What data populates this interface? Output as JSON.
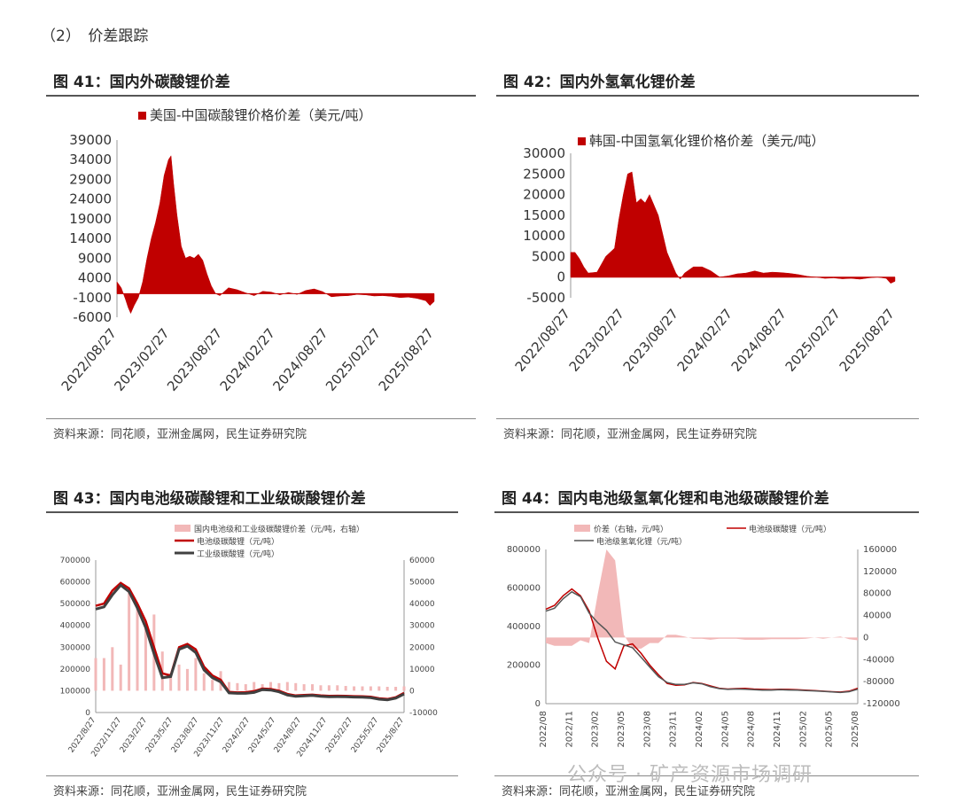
{
  "section": {
    "title": "（2）　价差跟踪"
  },
  "watermark": {
    "text": "公众号 · 矿产资源市场调研"
  },
  "colors": {
    "red": "#c00000",
    "pink": "#f2b8b8",
    "gray": "#404040",
    "darkgray": "#555555"
  },
  "chart_data": [
    {
      "id": "fig41",
      "type": "area",
      "title": "图 41：国内外碳酸锂价差",
      "legend": [
        "美国-中国碳酸锂价格价差（美元/吨）"
      ],
      "source": "资料来源：同花顺，亚洲金属网，民生证券研究院",
      "yticks": [
        "39000",
        "34000",
        "29000",
        "24000",
        "19000",
        "14000",
        "9000",
        "4000",
        "-1000",
        "-6000"
      ],
      "ylim": [
        -6000,
        39000
      ],
      "xticks": [
        "2022/08/27",
        "2023/02/27",
        "2023/08/27",
        "2024/02/27",
        "2024/08/27",
        "2025/02/27",
        "2025/08/27"
      ],
      "x": [
        0,
        0.5,
        1,
        1.3,
        1.6,
        2,
        2.5,
        3,
        3.5,
        4,
        4.5,
        5,
        5.5,
        6,
        6.3,
        6.6,
        7,
        7.5,
        8,
        8.5,
        9,
        9.5,
        10,
        10.5,
        11,
        11.5,
        12,
        13,
        14,
        15,
        16,
        17,
        18,
        19,
        20,
        21,
        22,
        23,
        24,
        25,
        26,
        27,
        28,
        29,
        30,
        31,
        32,
        33,
        34,
        35,
        36,
        36.5,
        37
      ],
      "values": [
        3000,
        1500,
        -1500,
        -3500,
        -5000,
        -3000,
        -1000,
        3000,
        9000,
        14000,
        18000,
        23000,
        30000,
        34000,
        35000,
        28000,
        20000,
        12000,
        9000,
        9500,
        9000,
        10000,
        8500,
        5000,
        2000,
        0,
        -500,
        1500,
        1000,
        200,
        -500,
        600,
        400,
        -300,
        300,
        -200,
        800,
        1200,
        500,
        -800,
        -600,
        -500,
        -200,
        -300,
        -600,
        -500,
        -700,
        -1000,
        -900,
        -1200,
        -1800,
        -3000,
        -2000
      ]
    },
    {
      "id": "fig42",
      "type": "area",
      "title": "图 42：国内外氢氧化锂价差",
      "legend": [
        "韩国-中国氢氧化锂价格价差（美元/吨）"
      ],
      "source": "资料来源：同花顺，亚洲金属网，民生证券研究院",
      "yticks": [
        "30000",
        "25000",
        "20000",
        "15000",
        "10000",
        "5000",
        "0",
        "-5000"
      ],
      "ylim": [
        -5000,
        30000
      ],
      "xticks": [
        "2022/08/27",
        "2023/02/27",
        "2023/08/27",
        "2024/02/27",
        "2024/08/27",
        "2025/02/27",
        "2025/08/27"
      ],
      "x": [
        0,
        0.5,
        1,
        1.5,
        2,
        3,
        4,
        5,
        5.5,
        6,
        6.5,
        7,
        7.5,
        8,
        8.5,
        9,
        10,
        11,
        12,
        12.5,
        13,
        14,
        15,
        16,
        17,
        18,
        19,
        20,
        21,
        22,
        23,
        24,
        25,
        26,
        27,
        28,
        29,
        30,
        31,
        32,
        33,
        34,
        35,
        36,
        36.5,
        37
      ],
      "values": [
        6000,
        6000,
        4500,
        2500,
        1000,
        1200,
        5000,
        7000,
        14000,
        20000,
        25000,
        25500,
        18000,
        19000,
        18000,
        20000,
        15000,
        6000,
        1000,
        -500,
        1000,
        2500,
        2500,
        1500,
        0,
        300,
        800,
        1000,
        1500,
        1000,
        1200,
        1100,
        900,
        600,
        200,
        0,
        -300,
        -200,
        -400,
        -300,
        -500,
        -200,
        0,
        -300,
        -1500,
        -1000
      ]
    },
    {
      "id": "fig43",
      "type": "line",
      "title": "图 43：国内电池级碳酸锂和工业级碳酸锂价差",
      "legend": [
        "国内电池级和工业级碳酸锂价差（元/吨，右轴）",
        "电池级碳酸锂（元/吨）",
        "工业级碳酸锂（元/吨）"
      ],
      "source": "资料来源：同花顺，亚洲金属网，民生证券研究院",
      "yticks_left": [
        "700000",
        "600000",
        "500000",
        "400000",
        "300000",
        "200000",
        "100000",
        "0"
      ],
      "yticks_right": [
        "60000",
        "50000",
        "40000",
        "30000",
        "20000",
        "10000",
        "0",
        "-10000"
      ],
      "ylim_left": [
        0,
        700000
      ],
      "ylim_right": [
        -10000,
        60000
      ],
      "xticks": [
        "2022/8/27",
        "2022/11/27",
        "2023/2/27",
        "2023/5/27",
        "2023/8/27",
        "2023/11/27",
        "2024/2/27",
        "2024/5/27",
        "2024/8/27",
        "2024/11/27",
        "2025/2/27",
        "2025/5/27",
        "2025/8/27"
      ],
      "x": [
        0,
        1,
        2,
        3,
        4,
        5,
        6,
        7,
        8,
        9,
        10,
        11,
        12,
        13,
        14,
        15,
        16,
        17,
        18,
        19,
        20,
        21,
        22,
        23,
        24,
        25,
        26,
        27,
        28,
        29,
        30,
        31,
        32,
        33,
        34,
        35,
        36,
        37
      ],
      "battery": [
        490000,
        500000,
        560000,
        595000,
        570000,
        500000,
        420000,
        300000,
        180000,
        170000,
        300000,
        315000,
        290000,
        210000,
        170000,
        150000,
        95000,
        92000,
        93000,
        98000,
        110000,
        108000,
        100000,
        85000,
        78000,
        80000,
        82000,
        78000,
        76000,
        77000,
        76000,
        75000,
        74000,
        72000,
        65000,
        62000,
        70000,
        90000
      ],
      "industrial": [
        475000,
        485000,
        540000,
        585000,
        555000,
        480000,
        390000,
        270000,
        160000,
        165000,
        290000,
        305000,
        275000,
        195000,
        160000,
        140000,
        90000,
        88000,
        88000,
        92000,
        105000,
        103000,
        95000,
        80000,
        74000,
        76000,
        78000,
        74000,
        72000,
        73000,
        72000,
        71000,
        70000,
        68000,
        61000,
        58000,
        66000,
        85000
      ],
      "spread": [
        15000,
        15000,
        20000,
        12000,
        45000,
        38000,
        30000,
        35000,
        18000,
        8000,
        12000,
        10000,
        15000,
        8000,
        5000,
        9000,
        4000,
        3500,
        3000,
        4000,
        3000,
        4000,
        3500,
        4000,
        3500,
        3000,
        3000,
        2500,
        2500,
        2500,
        2200,
        2000,
        2000,
        2000,
        2000,
        1800,
        1800,
        2000
      ]
    },
    {
      "id": "fig44",
      "type": "line",
      "title": "图 44：国内电池级氢氧化锂和电池级碳酸锂价差",
      "legend": [
        "价差（右轴，元/吨）",
        "电池级碳酸锂（元/吨）",
        "电池级氢氧化锂（元/吨）"
      ],
      "source": "资料来源：同花顺，亚洲金属网，民生证券研究院",
      "yticks_left": [
        "800000",
        "600000",
        "400000",
        "200000",
        "0"
      ],
      "yticks_right": [
        "160000",
        "120000",
        "80000",
        "40000",
        "0",
        "-40000",
        "-80000",
        "-120000"
      ],
      "ylim_left": [
        0,
        800000
      ],
      "ylim_right": [
        -120000,
        160000
      ],
      "xticks": [
        "2022/08",
        "2022/11",
        "2023/02",
        "2023/05",
        "2023/08",
        "2023/11",
        "2024/02",
        "2024/05",
        "2024/08",
        "2024/11",
        "2025/02",
        "2025/05",
        "2025/08"
      ],
      "x": [
        0,
        1,
        2,
        3,
        4,
        5,
        6,
        7,
        8,
        9,
        10,
        11,
        12,
        13,
        14,
        15,
        16,
        17,
        18,
        19,
        20,
        21,
        22,
        23,
        24,
        25,
        26,
        27,
        28,
        29,
        30,
        31,
        32,
        33,
        34,
        35,
        36
      ],
      "battery": [
        490000,
        510000,
        560000,
        595000,
        560000,
        480000,
        340000,
        220000,
        180000,
        300000,
        310000,
        260000,
        200000,
        150000,
        105000,
        95000,
        98000,
        110000,
        105000,
        92000,
        80000,
        76000,
        78000,
        79000,
        76000,
        74000,
        73000,
        75000,
        74000,
        72000,
        70000,
        68000,
        65000,
        62000,
        60000,
        65000,
        80000
      ],
      "hydroxide": [
        480000,
        495000,
        545000,
        580000,
        555000,
        470000,
        420000,
        380000,
        320000,
        305000,
        290000,
        240000,
        190000,
        140000,
        110000,
        100000,
        100000,
        108000,
        103000,
        88000,
        78000,
        74000,
        76000,
        75000,
        72000,
        70000,
        70000,
        72000,
        71000,
        70000,
        68000,
        66000,
        64000,
        61000,
        58000,
        62000,
        75000
      ],
      "spread": [
        -10000,
        -15000,
        -15000,
        -15000,
        -5000,
        -10000,
        80000,
        160000,
        140000,
        5000,
        -20000,
        -20000,
        -10000,
        -10000,
        5000,
        5000,
        2000,
        -2000,
        -2000,
        -4000,
        -2000,
        -2000,
        -2000,
        -4000,
        -4000,
        -4000,
        -3000,
        -3000,
        -3000,
        -3000,
        -2000,
        0,
        -2000,
        0,
        2000,
        -3000,
        -5000
      ]
    }
  ]
}
